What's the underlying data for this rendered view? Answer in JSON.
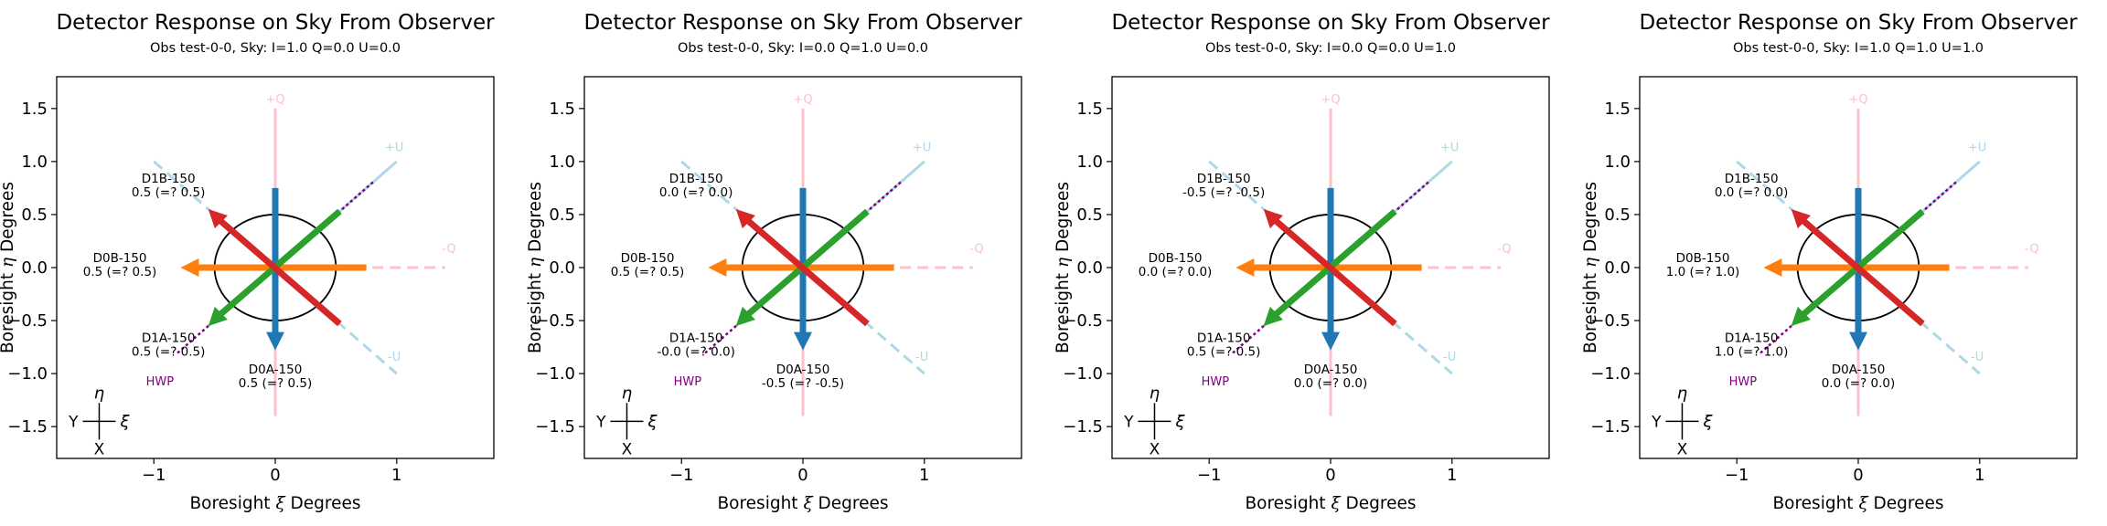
{
  "figure": {
    "xlabel_prefix": "Boresight ",
    "xlabel_symbol": "ξ",
    "xlabel_suffix": " Degrees",
    "ylabel_prefix": "Boresight ",
    "ylabel_symbol": "η",
    "ylabel_suffix": " Degrees",
    "xticks": [
      -1,
      0,
      1
    ],
    "xtick_labels": [
      "−1",
      "0",
      "1"
    ],
    "yticks": [
      -1.5,
      -1.0,
      -0.5,
      0.0,
      0.5,
      1.0,
      1.5
    ],
    "ytick_labels": [
      "−1.5",
      "−1.0",
      "−0.5",
      "0.0",
      "0.5",
      "1.0",
      "1.5"
    ],
    "xlim": [
      -1.8,
      1.8
    ],
    "ylim": [
      -1.8,
      1.8
    ],
    "stokes_labels": {
      "plus_q": "+Q",
      "minus_q": "-Q",
      "plus_u": "+U",
      "minus_u": "-U"
    },
    "hwp_label": "HWP",
    "compass": {
      "y": "Y",
      "x": "X",
      "eta": "η",
      "xi": "ξ"
    }
  },
  "colors": {
    "pink": "#ffc0cb",
    "lightblue": "#add8e6",
    "blue": "#1f77b4",
    "orange": "#ff7f0e",
    "green": "#2ca02c",
    "red": "#d62728",
    "purple": "#800080",
    "black": "#000000"
  },
  "chart_data": [
    {
      "type": "vector",
      "title": "Detector Response on Sky From Observer",
      "subtitle": "Obs test-0-0, Sky: I=1.0 Q=0.0 U=0.0",
      "detectors": [
        {
          "name": "D0A-150",
          "value": "0.5 (=? 0.5)",
          "angle_deg": 270,
          "color": "blue"
        },
        {
          "name": "D0B-150",
          "value": "0.5 (=? 0.5)",
          "angle_deg": 180,
          "color": "orange"
        },
        {
          "name": "D1A-150",
          "value": "0.5 (=? 0.5)",
          "angle_deg": 225,
          "color": "green"
        },
        {
          "name": "D1B-150",
          "value": "0.5 (=? 0.5)",
          "angle_deg": 135,
          "color": "red"
        }
      ]
    },
    {
      "type": "vector",
      "title": "Detector Response on Sky From Observer",
      "subtitle": "Obs test-0-0, Sky: I=0.0 Q=1.0 U=0.0",
      "detectors": [
        {
          "name": "D0A-150",
          "value": "-0.5 (=? -0.5)",
          "angle_deg": 270,
          "color": "blue"
        },
        {
          "name": "D0B-150",
          "value": "0.5 (=? 0.5)",
          "angle_deg": 180,
          "color": "orange"
        },
        {
          "name": "D1A-150",
          "value": "-0.0 (=? 0.0)",
          "angle_deg": 225,
          "color": "green"
        },
        {
          "name": "D1B-150",
          "value": "0.0 (=? 0.0)",
          "angle_deg": 135,
          "color": "red"
        }
      ]
    },
    {
      "type": "vector",
      "title": "Detector Response on Sky From Observer",
      "subtitle": "Obs test-0-0, Sky: I=0.0 Q=0.0 U=1.0",
      "detectors": [
        {
          "name": "D0A-150",
          "value": "0.0 (=? 0.0)",
          "angle_deg": 270,
          "color": "blue"
        },
        {
          "name": "D0B-150",
          "value": "0.0 (=? 0.0)",
          "angle_deg": 180,
          "color": "orange"
        },
        {
          "name": "D1A-150",
          "value": "0.5 (=? 0.5)",
          "angle_deg": 225,
          "color": "green"
        },
        {
          "name": "D1B-150",
          "value": "-0.5 (=? -0.5)",
          "angle_deg": 135,
          "color": "red"
        }
      ]
    },
    {
      "type": "vector",
      "title": "Detector Response on Sky From Observer",
      "subtitle": "Obs test-0-0, Sky: I=1.0 Q=1.0 U=1.0",
      "detectors": [
        {
          "name": "D0A-150",
          "value": "0.0 (=? 0.0)",
          "angle_deg": 270,
          "color": "blue"
        },
        {
          "name": "D0B-150",
          "value": "1.0 (=? 1.0)",
          "angle_deg": 180,
          "color": "orange"
        },
        {
          "name": "D1A-150",
          "value": "1.0 (=? 1.0)",
          "angle_deg": 225,
          "color": "green"
        },
        {
          "name": "D1B-150",
          "value": "0.0 (=? 0.0)",
          "angle_deg": 135,
          "color": "red"
        }
      ]
    }
  ]
}
